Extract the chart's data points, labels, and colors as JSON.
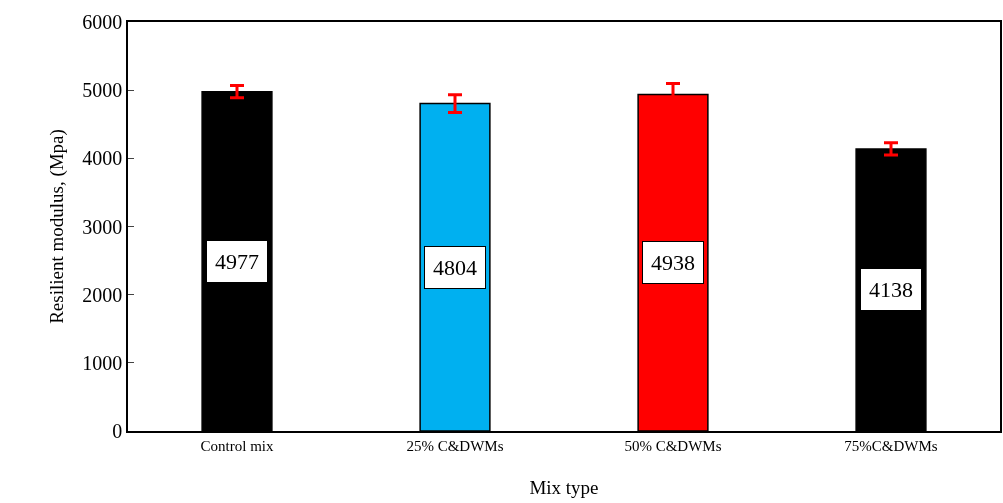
{
  "chart_data": {
    "type": "bar",
    "xlabel": "Mix type",
    "ylabel": "Resilient modulus, (Mpa)",
    "categories": [
      "Control mix",
      "25% C&DWMs",
      "50% C&DWMs",
      "75%C&DWMs"
    ],
    "values": [
      4977,
      4804,
      4938,
      4138
    ],
    "colors": [
      "#000000",
      "#00b0f0",
      "#ff0000",
      "#000000"
    ],
    "errors": [
      90,
      130,
      160,
      90
    ],
    "data_labels": true,
    "ylim": [
      0,
      6000
    ],
    "yticks": [
      0,
      1000,
      2000,
      3000,
      4000,
      5000,
      6000
    ],
    "grid": false
  }
}
